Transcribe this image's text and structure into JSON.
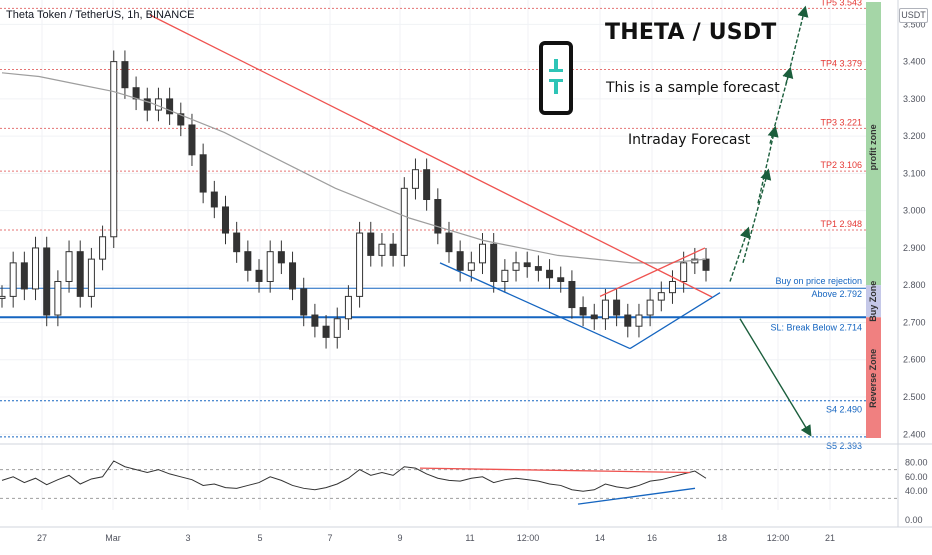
{
  "header": {
    "symbol_line": "Theta Token / TetherUS, 1h, BINANCE",
    "currency": "USDT"
  },
  "overlay": {
    "title": "THETA / USDT",
    "subtitle": "This is a sample forecast",
    "subtitle2": "Intraday Forecast"
  },
  "zones": {
    "profit": "profit zone",
    "buy": "Buy Zone",
    "reverse": "Reverse Zone"
  },
  "colors": {
    "profit_zone": "#a5d6a7",
    "buy_zone": "#c5c8e8",
    "reverse_zone": "#f08080",
    "tp_line": "#e57373",
    "support_line": "#1565c0",
    "forecast_arrow": "#1b5e3c",
    "trendline": "#ef5350",
    "logo": "#2ec4b6"
  },
  "chart_data": [
    {
      "type": "line",
      "series": [
        {
          "values": [
            2.77,
            2.86,
            2.79,
            2.9,
            2.72,
            2.81,
            2.89,
            2.77,
            2.87,
            2.93,
            3.4,
            3.33,
            3.3,
            3.27,
            3.3,
            3.26,
            3.23,
            3.15,
            3.05,
            3.01,
            2.94,
            2.89,
            2.84,
            2.81,
            2.89,
            2.86,
            2.79,
            2.72,
            2.69,
            2.66,
            2.71,
            2.77,
            2.94,
            2.88,
            2.91,
            2.88,
            3.06,
            3.11,
            3.03,
            2.94,
            2.89,
            2.84,
            2.86,
            2.91,
            2.81,
            2.84,
            2.86,
            2.85,
            2.84,
            2.82,
            2.81,
            2.74,
            2.72,
            2.71,
            2.76,
            2.72,
            2.69,
            2.72,
            2.76,
            2.78,
            2.81,
            2.86,
            2.87,
            2.84
          ]
        },
        {
          "values": [
            3.37,
            3.36,
            3.34,
            3.32,
            3.29,
            3.25,
            3.21,
            3.16,
            3.11,
            3.06,
            3.02,
            2.98,
            2.95,
            2.92,
            2.9,
            2.88,
            2.87,
            2.86,
            2.86,
            2.87
          ]
        }
      ],
      "x_tick_labels": [
        "27",
        "Mar",
        "3",
        "5",
        "7",
        "9",
        "11",
        "12:00",
        "14",
        "16",
        "18",
        "12:00",
        "21"
      ],
      "y_tick_labels": [
        "3.500",
        "3.400",
        "3.300",
        "3.200",
        "3.100",
        "3.000",
        "2.900",
        "2.800",
        "2.700",
        "2.600",
        "2.500",
        "2.400"
      ],
      "ylim": [
        2.39,
        3.56
      ],
      "levels": [
        {
          "label": "TP5 3.543",
          "value": 3.543
        },
        {
          "label": "TP4 3.379",
          "value": 3.379
        },
        {
          "label": "TP3 3.221",
          "value": 3.221
        },
        {
          "label": "TP2 3.106",
          "value": 3.106
        },
        {
          "label": "TP1 2.948",
          "value": 2.948
        },
        {
          "label": "Buy on price rejection",
          "value": 2.8
        },
        {
          "label": "Above 2.792",
          "value": 2.792
        },
        {
          "label": "SL: Break Below 2.714",
          "value": 2.714
        },
        {
          "label": "S4 2.490",
          "value": 2.49
        },
        {
          "label": "S5 2.393",
          "value": 2.393
        }
      ],
      "forecast_path": [
        2.81,
        2.95,
        3.106,
        3.221,
        3.379,
        3.543
      ],
      "reverse_target": 2.4
    },
    {
      "type": "line",
      "indicator": "RSI",
      "series": [
        {
          "values": [
            55,
            60,
            52,
            58,
            49,
            56,
            62,
            50,
            57,
            60,
            82,
            74,
            70,
            66,
            70,
            64,
            60,
            56,
            48,
            50,
            45,
            44,
            48,
            52,
            60,
            55,
            48,
            44,
            42,
            45,
            50,
            58,
            70,
            62,
            66,
            62,
            74,
            72,
            64,
            58,
            55,
            54,
            58,
            60,
            52,
            56,
            58,
            56,
            54,
            50,
            48,
            42,
            40,
            42,
            50,
            46,
            44,
            48,
            54,
            56,
            60,
            64,
            68,
            58
          ]
        }
      ],
      "y_tick_labels": [
        "80.00",
        "60.00",
        "40.00",
        "0.00"
      ],
      "ylim": [
        0,
        100
      ]
    }
  ]
}
